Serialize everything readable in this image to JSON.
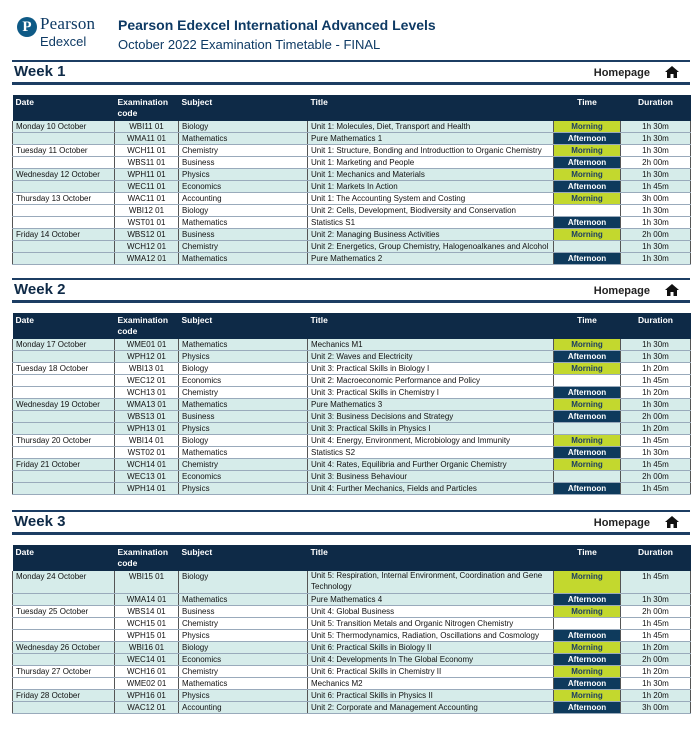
{
  "header": {
    "logo_pearson": "Pearson",
    "logo_edexcel": "Edexcel",
    "logo_letter": "P",
    "title": "Pearson Edexcel International Advanced Levels",
    "subtitle": "October 2022 Examination Timetable - FINAL"
  },
  "nav": {
    "homepage_label": "Homepage"
  },
  "columns": [
    "Date",
    "Examination code",
    "Subject",
    "Title",
    "Time",
    "Duration"
  ],
  "weeks": [
    {
      "title": "Week 1",
      "rows": [
        {
          "date": "Monday 10 October",
          "code": "WBI11 01",
          "subject": "Biology",
          "title": "Unit 1: Molecules, Diet, Transport and Health",
          "time": "Morning",
          "duration": "1h 30m"
        },
        {
          "date": "",
          "code": "WMA11 01",
          "subject": "Mathematics",
          "title": "Pure Mathematics 1",
          "time": "Afternoon",
          "duration": "1h 30m"
        },
        {
          "date": "Tuesday 11 October",
          "code": "WCH11 01",
          "subject": "Chemistry",
          "title": "Unit 1: Structure, Bonding and Introducttion to Organic Chemistry",
          "time": "Morning",
          "duration": "1h 30m"
        },
        {
          "date": "",
          "code": "WBS11 01",
          "subject": "Business",
          "title": "Unit 1: Marketing and People",
          "time": "Afternoon",
          "duration": "2h 00m"
        },
        {
          "date": "Wednesday 12 October",
          "code": "WPH11 01",
          "subject": "Physics",
          "title": "Unit 1: Mechanics and Materials",
          "time": "Morning",
          "duration": "1h 30m"
        },
        {
          "date": "",
          "code": "WEC11 01",
          "subject": "Economics",
          "title": "Unit 1: Markets In Action",
          "time": "Afternoon",
          "duration": "1h 45m"
        },
        {
          "date": "Thursday 13 October",
          "code": "WAC11 01",
          "subject": "Accounting",
          "title": "Unit 1: The Accounting System and Costing",
          "time": "Morning",
          "duration": "3h 00m"
        },
        {
          "date": "",
          "code": "WBI12 01",
          "subject": "Biology",
          "title": "Unit 2: Cells, Development, Biodiversity and Conservation",
          "time": "",
          "duration": "1h 30m"
        },
        {
          "date": "",
          "code": "WST01 01",
          "subject": "Mathematics",
          "title": "Statistics S1",
          "time": "Afternoon",
          "duration": "1h 30m"
        },
        {
          "date": "Friday 14 October",
          "code": "WBS12 01",
          "subject": "Business",
          "title": "Unit 2: Managing Business Activities",
          "time": "Morning",
          "duration": "2h 00m"
        },
        {
          "date": "",
          "code": "WCH12 01",
          "subject": "Chemistry",
          "title": "Unit 2: Energetics, Group Chemistry, Halogenoalkanes and Alcohol",
          "time": "",
          "duration": "1h 30m"
        },
        {
          "date": "",
          "code": "WMA12 01",
          "subject": "Mathematics",
          "title": "Pure Mathematics 2",
          "time": "Afternoon",
          "duration": "1h 30m"
        }
      ]
    },
    {
      "title": "Week 2",
      "rows": [
        {
          "date": "Monday 17 October",
          "code": "WME01 01",
          "subject": "Mathematics",
          "title": "Mechanics M1",
          "time": "Morning",
          "duration": "1h 30m"
        },
        {
          "date": "",
          "code": "WPH12 01",
          "subject": "Physics",
          "title": "Unit 2: Waves and Electricity",
          "time": "Afternoon",
          "duration": "1h 30m"
        },
        {
          "date": "Tuesday 18 October",
          "code": "WBI13 01",
          "subject": "Biology",
          "title": "Unit 3: Practical Skills in Biology I",
          "time": "Morning",
          "duration": "1h 20m"
        },
        {
          "date": "",
          "code": "WEC12 01",
          "subject": "Economics",
          "title": "Unit 2: Macroeconomic Performance and Policy",
          "time": "",
          "duration": "1h 45m"
        },
        {
          "date": "",
          "code": "WCH13 01",
          "subject": "Chemistry",
          "title": "Unit 3: Practical Skills in Chemistry I",
          "time": "Afternoon",
          "duration": "1h 20m"
        },
        {
          "date": "Wednesday 19 October",
          "code": "WMA13 01",
          "subject": "Mathematics",
          "title": "Pure Mathematics 3",
          "time": "Morning",
          "duration": "1h 30m"
        },
        {
          "date": "",
          "code": "WBS13 01",
          "subject": "Business",
          "title": "Unit 3: Business Decisions and Strategy",
          "time": "Afternoon",
          "duration": "2h 00m"
        },
        {
          "date": "",
          "code": "WPH13 01",
          "subject": "Physics",
          "title": "Unit 3: Practical Skills in Physics I",
          "time": "",
          "duration": "1h 20m"
        },
        {
          "date": "Thursday 20 October",
          "code": "WBI14 01",
          "subject": "Biology",
          "title": "Unit 4: Energy, Environment, Microbiology and Immunity",
          "time": "Morning",
          "duration": "1h 45m"
        },
        {
          "date": "",
          "code": "WST02 01",
          "subject": "Mathematics",
          "title": "Statistics S2",
          "time": "Afternoon",
          "duration": "1h 30m"
        },
        {
          "date": "Friday 21 October",
          "code": "WCH14 01",
          "subject": "Chemistry",
          "title": "Unit 4: Rates, Equilibria and Further Organic Chemistry",
          "time": "Morning",
          "duration": "1h 45m"
        },
        {
          "date": "",
          "code": "WEC13 01",
          "subject": "Economics",
          "title": "Unit 3: Business Behaviour",
          "time": "",
          "duration": "2h 00m"
        },
        {
          "date": "",
          "code": "WPH14 01",
          "subject": "Physics",
          "title": "Unit 4: Further Mechanics, Fields and Particles",
          "time": "Afternoon",
          "duration": "1h 45m"
        }
      ]
    },
    {
      "title": "Week 3",
      "rows": [
        {
          "date": "Monday 24 October",
          "code": "WBI15 01",
          "subject": "Biology",
          "title": "Unit 5: Respiration, Internal Environment, Coordination and Gene Technology",
          "time": "Morning",
          "duration": "1h 45m",
          "tall": true
        },
        {
          "date": "",
          "code": "WMA14 01",
          "subject": "Mathematics",
          "title": "Pure Mathematics 4",
          "time": "Afternoon",
          "duration": "1h 30m"
        },
        {
          "date": "Tuesday 25 October",
          "code": "WBS14 01",
          "subject": "Business",
          "title": "Unit 4: Global Business",
          "time": "Morning",
          "duration": "2h 00m"
        },
        {
          "date": "",
          "code": "WCH15 01",
          "subject": "Chemistry",
          "title": "Unit 5: Transition Metals and Organic Nitrogen Chemistry",
          "time": "",
          "duration": "1h 45m"
        },
        {
          "date": "",
          "code": "WPH15 01",
          "subject": "Physics",
          "title": "Unit 5: Thermodynamics, Radiation, Oscillations and Cosmology",
          "time": "Afternoon",
          "duration": "1h 45m"
        },
        {
          "date": "Wednesday 26 October",
          "code": "WBI16 01",
          "subject": "Biology",
          "title": "Unit 6: Practical Skills in Biology II",
          "time": "Morning",
          "duration": "1h 20m"
        },
        {
          "date": "",
          "code": "WEC14 01",
          "subject": "Economics",
          "title": "Unit 4: Developments In The Global Economy",
          "time": "Afternoon",
          "duration": "2h 00m"
        },
        {
          "date": "Thursday 27 October",
          "code": "WCH16 01",
          "subject": "Chemistry",
          "title": "Unit 6: Practical Skills in Chemistry II",
          "time": "Morning",
          "duration": "1h 20m"
        },
        {
          "date": "",
          "code": "WME02 01",
          "subject": "Mathematics",
          "title": "Mechanics M2",
          "time": "Afternoon",
          "duration": "1h 30m"
        },
        {
          "date": "Friday 28 October",
          "code": "WPH16 01",
          "subject": "Physics",
          "title": "Unit 6: Practical Skills in Physics II",
          "time": "Morning",
          "duration": "1h 20m"
        },
        {
          "date": "",
          "code": "WAC12 01",
          "subject": "Accounting",
          "title": "Unit 2: Corporate and Management Accounting",
          "time": "Afternoon",
          "duration": "3h 00m"
        }
      ]
    }
  ]
}
